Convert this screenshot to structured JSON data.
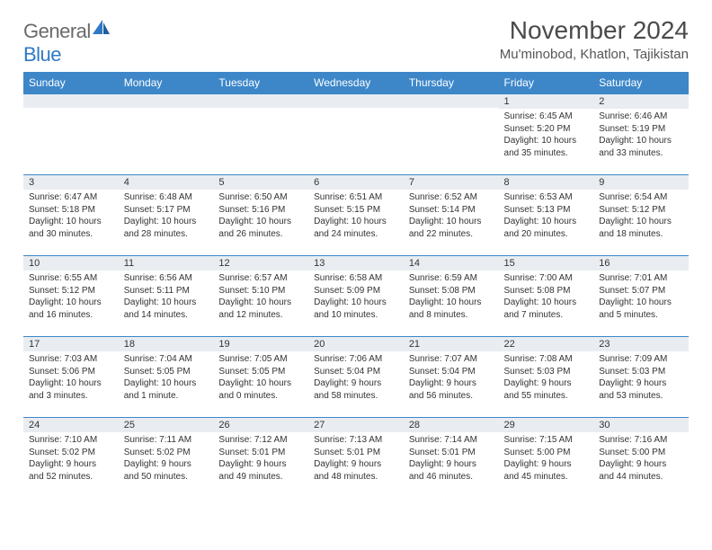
{
  "brand": {
    "part1": "General",
    "part2": "Blue"
  },
  "title": "November 2024",
  "location": "Mu'minobod, Khatlon, Tajikistan",
  "colors": {
    "header_bg": "#3d87c9",
    "header_fg": "#ffffff",
    "daynum_bg": "#e9edf1",
    "rule": "#3d87c9",
    "text": "#333333",
    "logo_gray": "#6a6a6a",
    "logo_blue": "#2f78c4"
  },
  "weekdays": [
    "Sunday",
    "Monday",
    "Tuesday",
    "Wednesday",
    "Thursday",
    "Friday",
    "Saturday"
  ],
  "weeks": [
    [
      {
        "n": "",
        "lines": []
      },
      {
        "n": "",
        "lines": []
      },
      {
        "n": "",
        "lines": []
      },
      {
        "n": "",
        "lines": []
      },
      {
        "n": "",
        "lines": []
      },
      {
        "n": "1",
        "lines": [
          "Sunrise: 6:45 AM",
          "Sunset: 5:20 PM",
          "Daylight: 10 hours and 35 minutes."
        ]
      },
      {
        "n": "2",
        "lines": [
          "Sunrise: 6:46 AM",
          "Sunset: 5:19 PM",
          "Daylight: 10 hours and 33 minutes."
        ]
      }
    ],
    [
      {
        "n": "3",
        "lines": [
          "Sunrise: 6:47 AM",
          "Sunset: 5:18 PM",
          "Daylight: 10 hours and 30 minutes."
        ]
      },
      {
        "n": "4",
        "lines": [
          "Sunrise: 6:48 AM",
          "Sunset: 5:17 PM",
          "Daylight: 10 hours and 28 minutes."
        ]
      },
      {
        "n": "5",
        "lines": [
          "Sunrise: 6:50 AM",
          "Sunset: 5:16 PM",
          "Daylight: 10 hours and 26 minutes."
        ]
      },
      {
        "n": "6",
        "lines": [
          "Sunrise: 6:51 AM",
          "Sunset: 5:15 PM",
          "Daylight: 10 hours and 24 minutes."
        ]
      },
      {
        "n": "7",
        "lines": [
          "Sunrise: 6:52 AM",
          "Sunset: 5:14 PM",
          "Daylight: 10 hours and 22 minutes."
        ]
      },
      {
        "n": "8",
        "lines": [
          "Sunrise: 6:53 AM",
          "Sunset: 5:13 PM",
          "Daylight: 10 hours and 20 minutes."
        ]
      },
      {
        "n": "9",
        "lines": [
          "Sunrise: 6:54 AM",
          "Sunset: 5:12 PM",
          "Daylight: 10 hours and 18 minutes."
        ]
      }
    ],
    [
      {
        "n": "10",
        "lines": [
          "Sunrise: 6:55 AM",
          "Sunset: 5:12 PM",
          "Daylight: 10 hours and 16 minutes."
        ]
      },
      {
        "n": "11",
        "lines": [
          "Sunrise: 6:56 AM",
          "Sunset: 5:11 PM",
          "Daylight: 10 hours and 14 minutes."
        ]
      },
      {
        "n": "12",
        "lines": [
          "Sunrise: 6:57 AM",
          "Sunset: 5:10 PM",
          "Daylight: 10 hours and 12 minutes."
        ]
      },
      {
        "n": "13",
        "lines": [
          "Sunrise: 6:58 AM",
          "Sunset: 5:09 PM",
          "Daylight: 10 hours and 10 minutes."
        ]
      },
      {
        "n": "14",
        "lines": [
          "Sunrise: 6:59 AM",
          "Sunset: 5:08 PM",
          "Daylight: 10 hours and 8 minutes."
        ]
      },
      {
        "n": "15",
        "lines": [
          "Sunrise: 7:00 AM",
          "Sunset: 5:08 PM",
          "Daylight: 10 hours and 7 minutes."
        ]
      },
      {
        "n": "16",
        "lines": [
          "Sunrise: 7:01 AM",
          "Sunset: 5:07 PM",
          "Daylight: 10 hours and 5 minutes."
        ]
      }
    ],
    [
      {
        "n": "17",
        "lines": [
          "Sunrise: 7:03 AM",
          "Sunset: 5:06 PM",
          "Daylight: 10 hours and 3 minutes."
        ]
      },
      {
        "n": "18",
        "lines": [
          "Sunrise: 7:04 AM",
          "Sunset: 5:05 PM",
          "Daylight: 10 hours and 1 minute."
        ]
      },
      {
        "n": "19",
        "lines": [
          "Sunrise: 7:05 AM",
          "Sunset: 5:05 PM",
          "Daylight: 10 hours and 0 minutes."
        ]
      },
      {
        "n": "20",
        "lines": [
          "Sunrise: 7:06 AM",
          "Sunset: 5:04 PM",
          "Daylight: 9 hours and 58 minutes."
        ]
      },
      {
        "n": "21",
        "lines": [
          "Sunrise: 7:07 AM",
          "Sunset: 5:04 PM",
          "Daylight: 9 hours and 56 minutes."
        ]
      },
      {
        "n": "22",
        "lines": [
          "Sunrise: 7:08 AM",
          "Sunset: 5:03 PM",
          "Daylight: 9 hours and 55 minutes."
        ]
      },
      {
        "n": "23",
        "lines": [
          "Sunrise: 7:09 AM",
          "Sunset: 5:03 PM",
          "Daylight: 9 hours and 53 minutes."
        ]
      }
    ],
    [
      {
        "n": "24",
        "lines": [
          "Sunrise: 7:10 AM",
          "Sunset: 5:02 PM",
          "Daylight: 9 hours and 52 minutes."
        ]
      },
      {
        "n": "25",
        "lines": [
          "Sunrise: 7:11 AM",
          "Sunset: 5:02 PM",
          "Daylight: 9 hours and 50 minutes."
        ]
      },
      {
        "n": "26",
        "lines": [
          "Sunrise: 7:12 AM",
          "Sunset: 5:01 PM",
          "Daylight: 9 hours and 49 minutes."
        ]
      },
      {
        "n": "27",
        "lines": [
          "Sunrise: 7:13 AM",
          "Sunset: 5:01 PM",
          "Daylight: 9 hours and 48 minutes."
        ]
      },
      {
        "n": "28",
        "lines": [
          "Sunrise: 7:14 AM",
          "Sunset: 5:01 PM",
          "Daylight: 9 hours and 46 minutes."
        ]
      },
      {
        "n": "29",
        "lines": [
          "Sunrise: 7:15 AM",
          "Sunset: 5:00 PM",
          "Daylight: 9 hours and 45 minutes."
        ]
      },
      {
        "n": "30",
        "lines": [
          "Sunrise: 7:16 AM",
          "Sunset: 5:00 PM",
          "Daylight: 9 hours and 44 minutes."
        ]
      }
    ]
  ]
}
